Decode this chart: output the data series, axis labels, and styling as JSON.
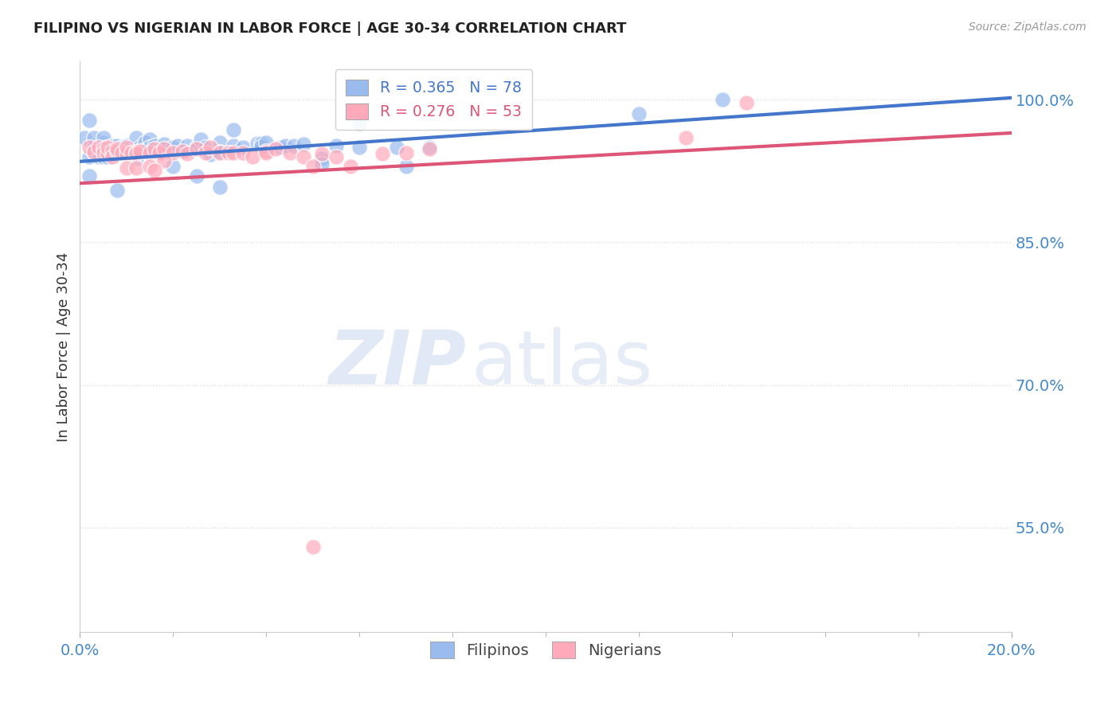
{
  "title": "FILIPINO VS NIGERIAN IN LABOR FORCE | AGE 30-34 CORRELATION CHART",
  "source": "Source: ZipAtlas.com",
  "ylabel": "In Labor Force | Age 30-34",
  "ytick_labels": [
    "100.0%",
    "85.0%",
    "70.0%",
    "55.0%"
  ],
  "ytick_values": [
    1.0,
    0.85,
    0.7,
    0.55
  ],
  "xlim": [
    0.0,
    0.2
  ],
  "ylim": [
    0.44,
    1.04
  ],
  "legend_R_blue": "R = 0.365",
  "legend_N_blue": "N = 78",
  "legend_R_pink": "R = 0.276",
  "legend_N_pink": "N = 53",
  "legend_labels": [
    "Filipinos",
    "Nigerians"
  ],
  "blue_color": "#99bbee",
  "pink_color": "#ffaabb",
  "blue_line_color": "#4477cc",
  "pink_line_color": "#dd5577",
  "blue_points": [
    [
      0.001,
      0.96
    ],
    [
      0.002,
      0.92
    ],
    [
      0.002,
      0.94
    ],
    [
      0.003,
      0.95
    ],
    [
      0.003,
      0.96
    ],
    [
      0.003,
      0.945
    ],
    [
      0.004,
      0.94
    ],
    [
      0.004,
      0.95
    ],
    [
      0.004,
      0.945
    ],
    [
      0.005,
      0.955
    ],
    [
      0.005,
      0.94
    ],
    [
      0.005,
      0.96
    ],
    [
      0.006,
      0.95
    ],
    [
      0.006,
      0.945
    ],
    [
      0.006,
      0.94
    ],
    [
      0.007,
      0.952
    ],
    [
      0.007,
      0.948
    ],
    [
      0.007,
      0.945
    ],
    [
      0.008,
      0.945
    ],
    [
      0.008,
      0.952
    ],
    [
      0.008,
      0.942
    ],
    [
      0.009,
      0.95
    ],
    [
      0.009,
      0.944
    ],
    [
      0.01,
      0.948
    ],
    [
      0.01,
      0.945
    ],
    [
      0.01,
      0.952
    ],
    [
      0.011,
      0.944
    ],
    [
      0.011,
      0.95
    ],
    [
      0.011,
      0.947
    ],
    [
      0.012,
      0.948
    ],
    [
      0.012,
      0.96
    ],
    [
      0.012,
      0.938
    ],
    [
      0.013,
      0.95
    ],
    [
      0.013,
      0.947
    ],
    [
      0.014,
      0.955
    ],
    [
      0.014,
      0.947
    ],
    [
      0.015,
      0.958
    ],
    [
      0.015,
      0.95
    ],
    [
      0.016,
      0.952
    ],
    [
      0.017,
      0.948
    ],
    [
      0.017,
      0.945
    ],
    [
      0.018,
      0.953
    ],
    [
      0.02,
      0.95
    ],
    [
      0.021,
      0.952
    ],
    [
      0.022,
      0.945
    ],
    [
      0.023,
      0.952
    ],
    [
      0.025,
      0.95
    ],
    [
      0.026,
      0.958
    ],
    [
      0.027,
      0.95
    ],
    [
      0.028,
      0.942
    ],
    [
      0.03,
      0.955
    ],
    [
      0.03,
      0.945
    ],
    [
      0.033,
      0.952
    ],
    [
      0.033,
      0.968
    ],
    [
      0.035,
      0.95
    ],
    [
      0.038,
      0.954
    ],
    [
      0.039,
      0.954
    ],
    [
      0.039,
      0.951
    ],
    [
      0.04,
      0.955
    ],
    [
      0.043,
      0.95
    ],
    [
      0.044,
      0.952
    ],
    [
      0.046,
      0.952
    ],
    [
      0.048,
      0.953
    ],
    [
      0.052,
      0.938
    ],
    [
      0.052,
      0.932
    ],
    [
      0.055,
      0.952
    ],
    [
      0.06,
      0.95
    ],
    [
      0.02,
      0.93
    ],
    [
      0.025,
      0.92
    ],
    [
      0.06,
      0.975
    ],
    [
      0.03,
      0.908
    ],
    [
      0.008,
      0.905
    ],
    [
      0.002,
      0.978
    ],
    [
      0.12,
      0.985
    ],
    [
      0.138,
      1.0
    ],
    [
      0.068,
      0.95
    ],
    [
      0.07,
      0.93
    ],
    [
      0.075,
      0.95
    ]
  ],
  "pink_points": [
    [
      0.002,
      0.95
    ],
    [
      0.003,
      0.945
    ],
    [
      0.004,
      0.95
    ],
    [
      0.005,
      0.948
    ],
    [
      0.005,
      0.944
    ],
    [
      0.006,
      0.943
    ],
    [
      0.006,
      0.95
    ],
    [
      0.007,
      0.946
    ],
    [
      0.007,
      0.94
    ],
    [
      0.008,
      0.946
    ],
    [
      0.008,
      0.948
    ],
    [
      0.009,
      0.944
    ],
    [
      0.01,
      0.943
    ],
    [
      0.01,
      0.95
    ],
    [
      0.011,
      0.944
    ],
    [
      0.012,
      0.945
    ],
    [
      0.012,
      0.943
    ],
    [
      0.013,
      0.946
    ],
    [
      0.015,
      0.944
    ],
    [
      0.016,
      0.948
    ],
    [
      0.017,
      0.944
    ],
    [
      0.018,
      0.948
    ],
    [
      0.02,
      0.944
    ],
    [
      0.022,
      0.946
    ],
    [
      0.023,
      0.943
    ],
    [
      0.025,
      0.948
    ],
    [
      0.027,
      0.944
    ],
    [
      0.028,
      0.95
    ],
    [
      0.03,
      0.944
    ],
    [
      0.032,
      0.944
    ],
    [
      0.033,
      0.944
    ],
    [
      0.035,
      0.944
    ],
    [
      0.037,
      0.94
    ],
    [
      0.04,
      0.946
    ],
    [
      0.04,
      0.944
    ],
    [
      0.042,
      0.948
    ],
    [
      0.045,
      0.944
    ],
    [
      0.048,
      0.94
    ],
    [
      0.05,
      0.93
    ],
    [
      0.052,
      0.943
    ],
    [
      0.055,
      0.94
    ],
    [
      0.058,
      0.93
    ],
    [
      0.01,
      0.928
    ],
    [
      0.012,
      0.928
    ],
    [
      0.015,
      0.93
    ],
    [
      0.018,
      0.936
    ],
    [
      0.016,
      0.926
    ],
    [
      0.065,
      0.943
    ],
    [
      0.07,
      0.944
    ],
    [
      0.075,
      0.948
    ],
    [
      0.13,
      0.96
    ],
    [
      0.143,
      0.997
    ],
    [
      0.05,
      0.53
    ]
  ],
  "blue_line": {
    "x0": 0.0,
    "y0": 0.935,
    "x1": 0.2,
    "y1": 1.002
  },
  "pink_line": {
    "x0": 0.0,
    "y0": 0.912,
    "x1": 0.2,
    "y1": 0.965
  },
  "watermark_zip": "ZIP",
  "watermark_atlas": "atlas",
  "background_color": "#ffffff",
  "grid_color": "#dddddd",
  "title_color": "#222222",
  "axis_label_color": "#333333",
  "tick_color": "#4488cc",
  "source_color": "#999999"
}
